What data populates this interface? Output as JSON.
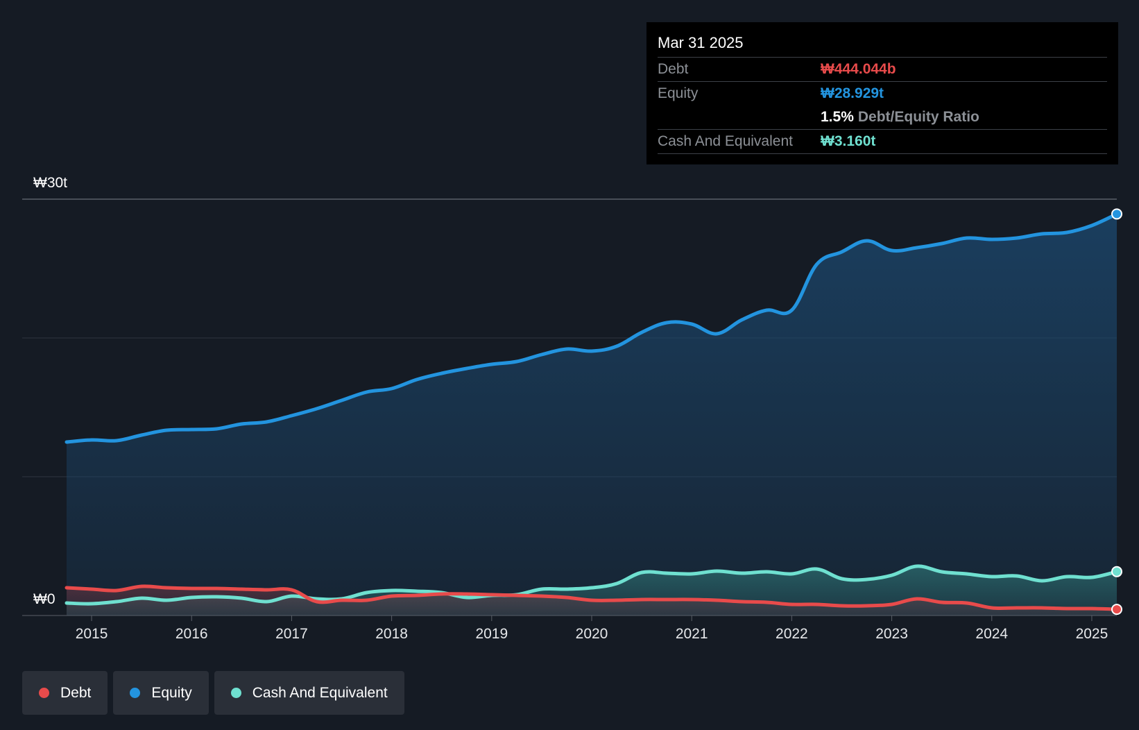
{
  "colors": {
    "debt": "#e84b4b",
    "equity": "#2394df",
    "cash": "#6fe0d0",
    "background": "#151b24"
  },
  "tooltip": {
    "date": "Mar 31 2025",
    "debt_label": "Debt",
    "debt_value": "₩444.044b",
    "equity_label": "Equity",
    "equity_value": "₩28.929t",
    "ratio_value": "1.5%",
    "ratio_label": "Debt/Equity Ratio",
    "cash_label": "Cash And Equivalent",
    "cash_value": "₩3.160t"
  },
  "legend": [
    {
      "label": "Debt",
      "color": "#e84b4b"
    },
    {
      "label": "Equity",
      "color": "#2394df"
    },
    {
      "label": "Cash And Equivalent",
      "color": "#6fe0d0"
    }
  ],
  "chart_data": {
    "type": "area",
    "title": "",
    "xlabel": "",
    "ylabel": "",
    "ylim": [
      0,
      30
    ],
    "y_unit": "trillion KRW",
    "y_tick_labels": [
      "₩0",
      "₩30t"
    ],
    "x_tick_labels": [
      "2015",
      "2016",
      "2017",
      "2018",
      "2019",
      "2020",
      "2021",
      "2022",
      "2023",
      "2024",
      "2025"
    ],
    "xlim": [
      2014.75,
      2025.25
    ],
    "grid": true,
    "series": [
      {
        "name": "Equity",
        "x": [
          2014.75,
          2015.0,
          2015.25,
          2015.5,
          2015.75,
          2016.0,
          2016.25,
          2016.5,
          2016.75,
          2017.0,
          2017.25,
          2017.5,
          2017.75,
          2018.0,
          2018.25,
          2018.5,
          2018.75,
          2019.0,
          2019.25,
          2019.5,
          2019.75,
          2020.0,
          2020.25,
          2020.5,
          2020.75,
          2021.0,
          2021.25,
          2021.5,
          2021.75,
          2022.0,
          2022.25,
          2022.5,
          2022.75,
          2023.0,
          2023.25,
          2023.5,
          2023.75,
          2024.0,
          2024.25,
          2024.5,
          2024.75,
          2025.0,
          2025.25
        ],
        "values": [
          12.5,
          12.65,
          12.6,
          13.0,
          13.35,
          13.4,
          13.45,
          13.8,
          13.95,
          14.4,
          14.9,
          15.5,
          16.1,
          16.35,
          17.0,
          17.45,
          17.8,
          18.1,
          18.3,
          18.8,
          19.2,
          19.05,
          19.4,
          20.4,
          21.1,
          21.0,
          20.3,
          21.3,
          22.0,
          22.0,
          25.3,
          26.2,
          27.0,
          26.3,
          26.5,
          26.8,
          27.2,
          27.1,
          27.2,
          27.5,
          27.6,
          28.1,
          28.929
        ]
      },
      {
        "name": "Debt",
        "x": [
          2014.75,
          2015.0,
          2015.25,
          2015.5,
          2015.75,
          2016.0,
          2016.25,
          2016.5,
          2016.75,
          2017.0,
          2017.25,
          2017.5,
          2017.75,
          2018.0,
          2018.25,
          2018.5,
          2018.75,
          2019.0,
          2019.25,
          2019.5,
          2019.75,
          2020.0,
          2020.25,
          2020.5,
          2020.75,
          2021.0,
          2021.25,
          2021.5,
          2021.75,
          2022.0,
          2022.25,
          2022.5,
          2022.75,
          2023.0,
          2023.25,
          2023.5,
          2023.75,
          2024.0,
          2024.25,
          2024.5,
          2024.75,
          2025.0,
          2025.25
        ],
        "values": [
          2.0,
          1.9,
          1.8,
          2.1,
          2.0,
          1.95,
          1.95,
          1.9,
          1.85,
          1.85,
          1.0,
          1.1,
          1.1,
          1.4,
          1.45,
          1.55,
          1.55,
          1.5,
          1.45,
          1.4,
          1.3,
          1.1,
          1.1,
          1.15,
          1.15,
          1.15,
          1.1,
          1.0,
          0.95,
          0.8,
          0.8,
          0.7,
          0.7,
          0.8,
          1.2,
          0.95,
          0.9,
          0.55,
          0.55,
          0.55,
          0.5,
          0.5,
          0.444
        ]
      },
      {
        "name": "Cash And Equivalent",
        "x": [
          2014.75,
          2015.0,
          2015.25,
          2015.5,
          2015.75,
          2016.0,
          2016.25,
          2016.5,
          2016.75,
          2017.0,
          2017.25,
          2017.5,
          2017.75,
          2018.0,
          2018.25,
          2018.5,
          2018.75,
          2019.0,
          2019.25,
          2019.5,
          2019.75,
          2020.0,
          2020.25,
          2020.5,
          2020.75,
          2021.0,
          2021.25,
          2021.5,
          2021.75,
          2022.0,
          2022.25,
          2022.5,
          2022.75,
          2023.0,
          2023.25,
          2023.5,
          2023.75,
          2024.0,
          2024.25,
          2024.5,
          2024.75,
          2025.0,
          2025.25
        ],
        "values": [
          0.9,
          0.85,
          1.0,
          1.25,
          1.1,
          1.3,
          1.35,
          1.25,
          1.0,
          1.4,
          1.2,
          1.2,
          1.65,
          1.8,
          1.75,
          1.65,
          1.3,
          1.45,
          1.5,
          1.9,
          1.9,
          2.0,
          2.3,
          3.1,
          3.05,
          3.0,
          3.2,
          3.05,
          3.15,
          3.0,
          3.35,
          2.65,
          2.6,
          2.9,
          3.55,
          3.15,
          3.0,
          2.8,
          2.85,
          2.5,
          2.8,
          2.75,
          3.16
        ]
      }
    ]
  }
}
